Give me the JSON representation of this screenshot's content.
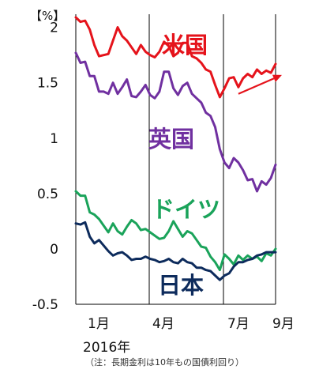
{
  "chart_data": {
    "type": "line",
    "unit_label": "【%】",
    "ylim": [
      -0.5,
      2.1
    ],
    "y_ticks": [
      {
        "value": 2,
        "label": "2"
      },
      {
        "value": 1.5,
        "label": "1.5"
      },
      {
        "value": 1,
        "label": "1"
      },
      {
        "value": 0.5,
        "label": "0.5"
      },
      {
        "value": 0,
        "label": "0"
      },
      {
        "value": -0.5,
        "label": "-0.5"
      }
    ],
    "x_tick_labels": [
      "1月",
      "4月",
      "7月",
      "9月"
    ],
    "x_year_label": "2016年",
    "vertical_gridlines": [
      "4月",
      "7月"
    ],
    "grid": false,
    "footnote": "（注：長期金利は10年もの国債利回り）",
    "series": [
      {
        "name": "米国",
        "color": "#e5131b",
        "values": [
          2.09,
          2.05,
          2.06,
          1.98,
          1.84,
          1.74,
          1.75,
          1.76,
          1.88,
          2.0,
          1.92,
          1.88,
          1.82,
          1.76,
          1.84,
          1.78,
          1.75,
          1.73,
          1.78,
          1.87,
          1.83,
          1.74,
          1.77,
          1.86,
          1.86,
          1.74,
          1.72,
          1.68,
          1.62,
          1.6,
          1.48,
          1.37,
          1.45,
          1.54,
          1.55,
          1.46,
          1.54,
          1.58,
          1.55,
          1.62,
          1.58,
          1.61,
          1.59,
          1.67
        ]
      },
      {
        "name": "英国",
        "color": "#7030a0",
        "values": [
          1.77,
          1.68,
          1.69,
          1.56,
          1.56,
          1.42,
          1.42,
          1.4,
          1.5,
          1.4,
          1.46,
          1.53,
          1.38,
          1.37,
          1.42,
          1.48,
          1.39,
          1.36,
          1.42,
          1.6,
          1.6,
          1.45,
          1.39,
          1.47,
          1.5,
          1.4,
          1.36,
          1.32,
          1.23,
          1.2,
          1.1,
          0.9,
          0.78,
          0.73,
          0.82,
          0.78,
          0.71,
          0.62,
          0.63,
          0.52,
          0.61,
          0.58,
          0.64,
          0.76
        ]
      },
      {
        "name": "ドイツ",
        "color": "#1aa35a",
        "values": [
          0.52,
          0.48,
          0.48,
          0.33,
          0.31,
          0.27,
          0.21,
          0.15,
          0.23,
          0.16,
          0.13,
          0.2,
          0.26,
          0.23,
          0.17,
          0.18,
          0.15,
          0.12,
          0.09,
          0.1,
          0.16,
          0.25,
          0.18,
          0.11,
          0.16,
          0.14,
          0.08,
          0.02,
          0.01,
          -0.07,
          -0.12,
          -0.19,
          -0.05,
          -0.09,
          -0.14,
          -0.06,
          -0.1,
          -0.06,
          -0.09,
          -0.07,
          -0.11,
          -0.04,
          -0.06,
          0.0
        ]
      },
      {
        "name": "日本",
        "color": "#0d2b5c",
        "values": [
          0.23,
          0.22,
          0.24,
          0.11,
          0.05,
          0.08,
          0.03,
          -0.02,
          -0.06,
          -0.04,
          -0.03,
          -0.06,
          -0.1,
          -0.09,
          -0.09,
          -0.07,
          -0.09,
          -0.1,
          -0.12,
          -0.11,
          -0.09,
          -0.12,
          -0.13,
          -0.09,
          -0.12,
          -0.13,
          -0.17,
          -0.17,
          -0.19,
          -0.2,
          -0.24,
          -0.28,
          -0.24,
          -0.22,
          -0.16,
          -0.12,
          -0.12,
          -0.1,
          -0.09,
          -0.06,
          -0.05,
          -0.03,
          -0.03,
          -0.03
        ]
      }
    ],
    "annotation": {
      "type": "arrow",
      "color": "#e5131b",
      "from": [
        35,
        1.4
      ],
      "to": [
        43,
        1.57
      ]
    }
  }
}
